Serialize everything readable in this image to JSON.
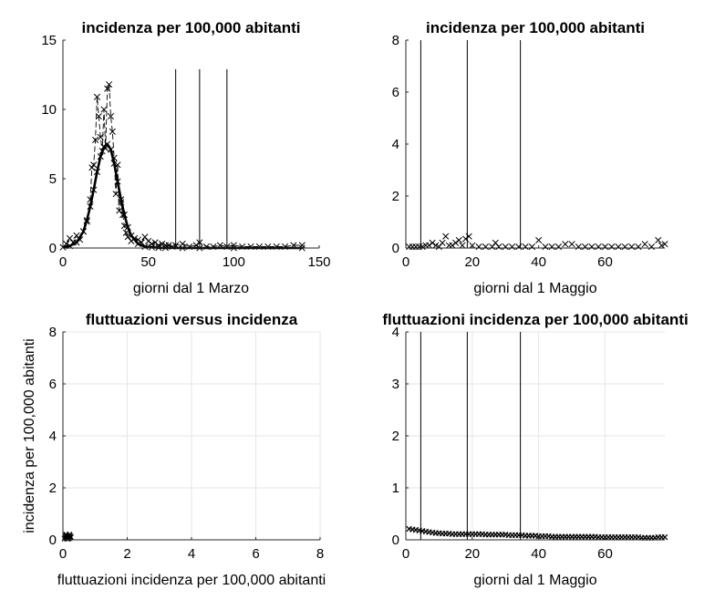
{
  "chart_data": [
    {
      "type": "line",
      "title": "incidenza per 100,000 abitanti",
      "xlabel": "giorni dal 1 Marzo",
      "ylabel": "",
      "xlim": [
        0,
        150
      ],
      "ylim": [
        0,
        15
      ],
      "xticks": [
        0,
        50,
        100,
        150
      ],
      "yticks": [
        0,
        5,
        10,
        15
      ],
      "grid": false,
      "vlines": [
        66,
        80,
        96
      ],
      "series": [
        {
          "style": "cross-markers-dashed",
          "x": [
            2,
            4,
            6,
            8,
            10,
            12,
            14,
            16,
            17,
            18,
            19,
            20,
            21,
            22,
            23,
            24,
            25,
            26,
            27,
            28,
            29,
            30,
            31,
            32,
            33,
            34,
            35,
            36,
            37,
            38,
            40,
            42,
            44,
            46,
            48,
            50,
            52,
            54,
            56,
            58,
            60,
            62,
            64,
            66,
            70,
            74,
            78,
            80,
            84,
            88,
            92,
            96,
            100,
            105,
            110,
            115,
            120,
            125,
            130,
            135,
            140
          ],
          "y": [
            0.3,
            0.7,
            0.4,
            0.9,
            0.6,
            1.2,
            1.9,
            3.5,
            5.8,
            6.0,
            7.8,
            10.9,
            9.5,
            8.0,
            7.0,
            10.0,
            7.2,
            11.5,
            11.8,
            9.5,
            8.4,
            6.5,
            3.9,
            6.0,
            2.7,
            3.3,
            2.4,
            1.6,
            1.1,
            0.8,
            0.5,
            0.7,
            0.6,
            0.4,
            0.8,
            0.5,
            0.3,
            0.4,
            0.2,
            0.3,
            0.2,
            0.2,
            0.1,
            0.2,
            0.3,
            0.1,
            0.2,
            0.4,
            0.1,
            0.1,
            0.2,
            0.1,
            0.2,
            0.1,
            0.1,
            0.1,
            0.1,
            0.1,
            0.1,
            0.2,
            0.2
          ]
        },
        {
          "style": "smooth-thick",
          "x": [
            0,
            4,
            8,
            12,
            14,
            16,
            18,
            20,
            22,
            24,
            26,
            28,
            30,
            32,
            34,
            36,
            38,
            40,
            44,
            48,
            52,
            56,
            60,
            70,
            80,
            100,
            140
          ],
          "y": [
            0.05,
            0.15,
            0.4,
            1.2,
            2.0,
            3.0,
            4.2,
            5.5,
            6.6,
            7.3,
            7.5,
            7.1,
            6.1,
            4.8,
            3.5,
            2.4,
            1.5,
            0.9,
            0.3,
            0.1,
            0.05,
            0.02,
            0.01,
            0,
            0,
            0,
            0
          ]
        }
      ]
    },
    {
      "type": "line",
      "title": "incidenza per 100,000 abitanti",
      "xlabel": "giorni dal 1 Maggio",
      "ylabel": "",
      "xlim": [
        0,
        78
      ],
      "ylim": [
        0,
        8
      ],
      "xticks": [
        0,
        20,
        40,
        60
      ],
      "yticks": [
        0,
        2,
        4,
        6,
        8
      ],
      "grid": false,
      "vlines": [
        4.5,
        18.5,
        34.5
      ],
      "series": [
        {
          "style": "cross-markers",
          "x": [
            1,
            2,
            3,
            4,
            5,
            6,
            7,
            8,
            9,
            10,
            11,
            12,
            13,
            14,
            15,
            16,
            17,
            18,
            19,
            20,
            22,
            24,
            26,
            27,
            28,
            30,
            32,
            34,
            36,
            38,
            40,
            42,
            44,
            46,
            48,
            50,
            52,
            54,
            56,
            58,
            60,
            62,
            64,
            66,
            68,
            70,
            72,
            74,
            76,
            77,
            78
          ],
          "y": [
            0.05,
            0.05,
            0.05,
            0.05,
            0.05,
            0.1,
            0.1,
            0.2,
            0.1,
            0.05,
            0.2,
            0.45,
            0.1,
            0.1,
            0.2,
            0.3,
            0.1,
            0.35,
            0.45,
            0.1,
            0.05,
            0.05,
            0.05,
            0.2,
            0.05,
            0.05,
            0.05,
            0.05,
            0.05,
            0.05,
            0.3,
            0.05,
            0.05,
            0.05,
            0.15,
            0.15,
            0.05,
            0.05,
            0.05,
            0.05,
            0.05,
            0.05,
            0.05,
            0.05,
            0.05,
            0.05,
            0.15,
            0.05,
            0.3,
            0.1,
            0.15
          ]
        }
      ]
    },
    {
      "type": "scatter",
      "title": "fluttuazioni versus incidenza",
      "xlabel": "fluttuazioni incidenza per 100,000 abitanti",
      "ylabel": "incidenza per 100,000 abitanti",
      "xlim": [
        0,
        8
      ],
      "ylim": [
        0,
        8
      ],
      "xticks": [
        0,
        2,
        4,
        6,
        8
      ],
      "yticks": [
        0,
        2,
        4,
        6,
        8
      ],
      "grid": true,
      "vlines": [],
      "series": [
        {
          "style": "cross-markers-dots",
          "x": [
            0.05,
            0.08,
            0.1,
            0.12,
            0.15,
            0.18,
            0.2,
            0.22,
            0.1,
            0.15,
            0.2,
            0.25
          ],
          "y": [
            0.05,
            0.1,
            0.15,
            0.05,
            0.1,
            0.05,
            0.1,
            0.15,
            0.2,
            0.05,
            0.2,
            0.1
          ]
        }
      ]
    },
    {
      "type": "line",
      "title": "fluttuazioni incidenza per 100,000 abitanti",
      "xlabel": "giorni dal 1 Maggio",
      "ylabel": "",
      "xlim": [
        0,
        78
      ],
      "ylim": [
        0,
        4
      ],
      "xticks": [
        0,
        20,
        40,
        60
      ],
      "yticks": [
        0,
        1,
        2,
        3,
        4
      ],
      "grid": true,
      "vlines": [
        4.5,
        18.5,
        34.5
      ],
      "series": [
        {
          "style": "cross-markers-dots",
          "x": [
            1,
            2,
            3,
            4,
            5,
            6,
            7,
            8,
            9,
            10,
            11,
            12,
            13,
            14,
            15,
            16,
            17,
            18,
            19,
            20,
            21,
            22,
            23,
            24,
            25,
            26,
            27,
            28,
            29,
            30,
            31,
            32,
            33,
            34,
            35,
            36,
            37,
            38,
            39,
            40,
            41,
            42,
            43,
            44,
            45,
            46,
            47,
            48,
            49,
            50,
            51,
            52,
            53,
            54,
            55,
            56,
            57,
            58,
            59,
            60,
            61,
            62,
            63,
            64,
            65,
            66,
            67,
            68,
            69,
            70,
            71,
            72,
            73,
            74,
            75,
            76,
            77,
            78
          ],
          "y": [
            0.21,
            0.2,
            0.19,
            0.18,
            0.17,
            0.16,
            0.15,
            0.14,
            0.13,
            0.13,
            0.12,
            0.12,
            0.12,
            0.11,
            0.11,
            0.11,
            0.11,
            0.11,
            0.11,
            0.11,
            0.11,
            0.11,
            0.11,
            0.1,
            0.1,
            0.1,
            0.1,
            0.1,
            0.1,
            0.1,
            0.09,
            0.09,
            0.09,
            0.09,
            0.09,
            0.08,
            0.08,
            0.08,
            0.08,
            0.07,
            0.07,
            0.07,
            0.07,
            0.06,
            0.06,
            0.06,
            0.06,
            0.06,
            0.06,
            0.06,
            0.06,
            0.06,
            0.06,
            0.06,
            0.06,
            0.06,
            0.06,
            0.05,
            0.05,
            0.05,
            0.05,
            0.05,
            0.05,
            0.05,
            0.05,
            0.05,
            0.05,
            0.05,
            0.05,
            0.05,
            0.04,
            0.04,
            0.04,
            0.04,
            0.04,
            0.05,
            0.05,
            0.05
          ]
        }
      ]
    }
  ]
}
